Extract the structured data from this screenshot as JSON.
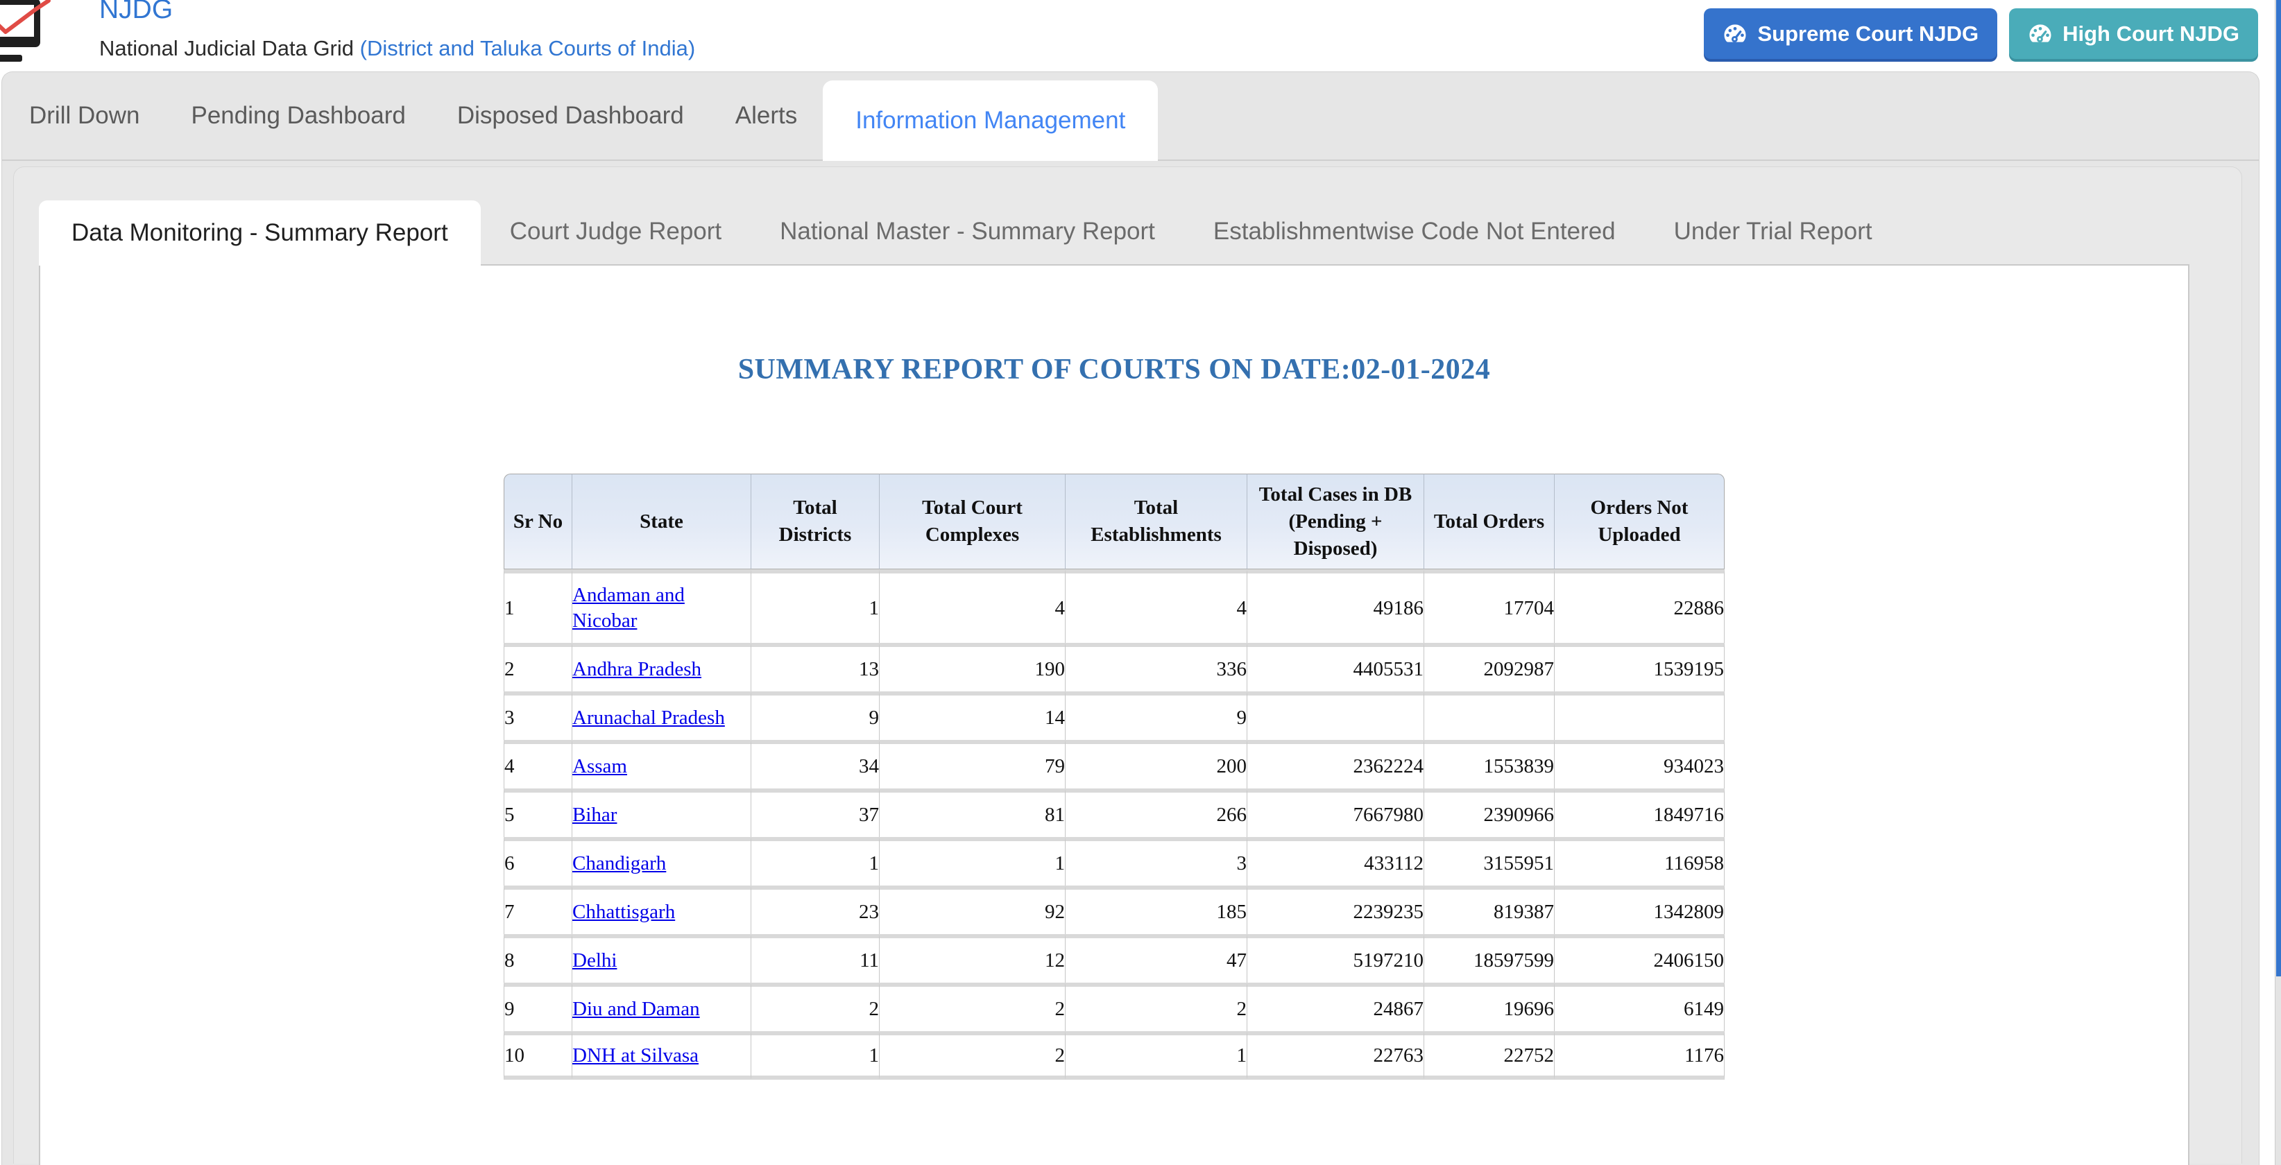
{
  "header": {
    "title": "NJDG",
    "subtitle_main": "National Judicial Data Grid ",
    "subtitle_note": "(District and Taluka Courts of India)",
    "brand_color": "#3176d2",
    "buttons": [
      {
        "label": "Supreme Court NJDG",
        "bg": "#3573cc",
        "shadow": "#2a5cae",
        "icon": "tachometer-icon"
      },
      {
        "label": "High Court NJDG",
        "bg": "#4aacb9",
        "shadow": "#3b93a1",
        "icon": "tachometer-icon"
      }
    ]
  },
  "nav_tabs": [
    {
      "label": "Drill Down",
      "active": false
    },
    {
      "label": "Pending Dashboard",
      "active": false
    },
    {
      "label": "Disposed Dashboard",
      "active": false
    },
    {
      "label": "Alerts",
      "active": false
    },
    {
      "label": "Information Management",
      "active": true
    }
  ],
  "sub_tabs": [
    {
      "label": "Data Monitoring - Summary Report",
      "active": true
    },
    {
      "label": "Court Judge Report",
      "active": false
    },
    {
      "label": "National Master - Summary Report",
      "active": false
    },
    {
      "label": "Establishmentwise Code Not Entered",
      "active": false
    },
    {
      "label": "Under Trial Report",
      "active": false
    }
  ],
  "report": {
    "title": "SUMMARY REPORT OF COURTS ON DATE:02-01-2024",
    "title_color": "#3470af"
  },
  "table": {
    "columns": [
      "Sr No",
      "State",
      "Total Districts",
      "Total Court Complexes",
      "Total Establishments",
      "Total Cases in DB (Pending + Disposed)",
      "Total Orders",
      "Orders Not Uploaded"
    ],
    "rows": [
      [
        "1",
        "Andaman and Nicobar",
        "1",
        "4",
        "4",
        "49186",
        "17704",
        "22886"
      ],
      [
        "2",
        "Andhra Pradesh",
        "13",
        "190",
        "336",
        "4405531",
        "2092987",
        "1539195"
      ],
      [
        "3",
        "Arunachal Pradesh",
        "9",
        "14",
        "9",
        "",
        "",
        ""
      ],
      [
        "4",
        "Assam",
        "34",
        "79",
        "200",
        "2362224",
        "1553839",
        "934023"
      ],
      [
        "5",
        "Bihar",
        "37",
        "81",
        "266",
        "7667980",
        "2390966",
        "1849716"
      ],
      [
        "6",
        "Chandigarh",
        "1",
        "1",
        "3",
        "433112",
        "3155951",
        "116958"
      ],
      [
        "7",
        "Chhattisgarh",
        "23",
        "92",
        "185",
        "2239235",
        "819387",
        "1342809"
      ],
      [
        "8",
        "Delhi",
        "11",
        "12",
        "47",
        "5197210",
        "18597599",
        "2406150"
      ],
      [
        "9",
        "Diu and Daman",
        "2",
        "2",
        "2",
        "24867",
        "19696",
        "6149"
      ],
      [
        "10",
        "DNH at Silvasa",
        "1",
        "2",
        "1",
        "22763",
        "22752",
        "1176"
      ]
    ]
  }
}
